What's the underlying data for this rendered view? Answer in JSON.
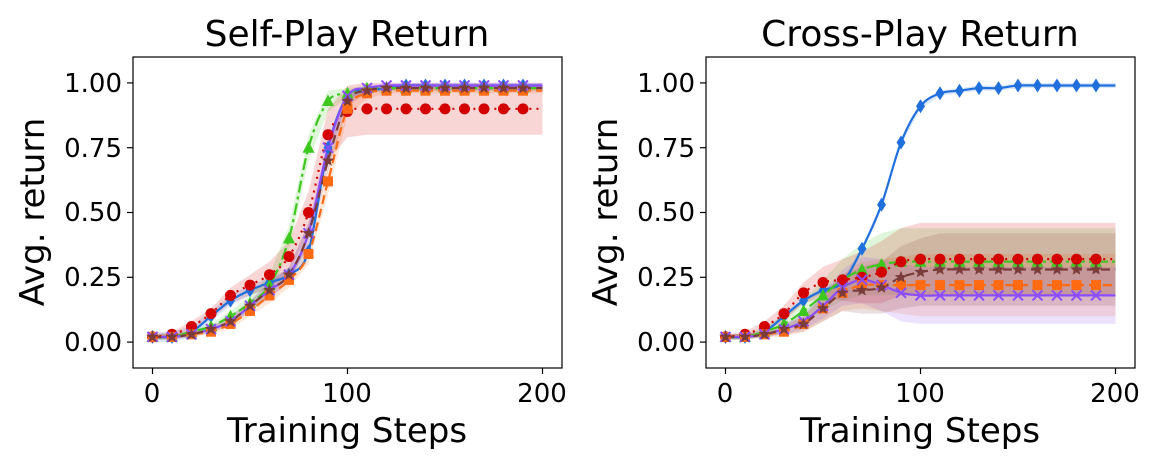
{
  "chart_data": [
    {
      "type": "line",
      "title": "Self-Play Return",
      "xlabel": "Training Steps",
      "ylabel": "Avg. return",
      "xlim": [
        -10,
        210
      ],
      "ylim": [
        -0.1,
        1.1
      ],
      "xticks": [
        0,
        100,
        200
      ],
      "xtick_labels": [
        "0",
        "100",
        "200"
      ],
      "yticks": [
        0.0,
        0.25,
        0.5,
        0.75,
        1.0
      ],
      "ytick_labels": [
        "0.00",
        "0.25",
        "0.50",
        "0.75",
        "1.00"
      ],
      "marker_x": [
        0,
        10,
        20,
        30,
        40,
        50,
        60,
        70,
        80,
        90,
        100,
        110,
        120,
        130,
        140,
        150,
        160,
        170,
        180,
        190
      ],
      "series": [
        {
          "name": "blue-diamond",
          "color": "#1f6fdd",
          "marker": "diamond",
          "linestyle": "solid",
          "values": [
            0.02,
            0.02,
            0.04,
            0.1,
            0.16,
            0.2,
            0.23,
            0.26,
            0.35,
            0.75,
            0.95,
            0.97,
            0.98,
            0.99,
            0.99,
            0.99,
            0.99,
            0.99,
            0.99,
            0.99
          ],
          "band": [
            0.02,
            0.02,
            0.02,
            0.02,
            0.02,
            0.02,
            0.02,
            0.02,
            0.02,
            0.02,
            0.01,
            0.01,
            0.01,
            0.01,
            0.01,
            0.01,
            0.01,
            0.01,
            0.01,
            0.01
          ]
        },
        {
          "name": "green-triangle",
          "color": "#3cc81e",
          "marker": "triangle",
          "linestyle": "dashdot",
          "values": [
            0.02,
            0.02,
            0.04,
            0.06,
            0.1,
            0.15,
            0.22,
            0.4,
            0.75,
            0.93,
            0.96,
            0.98,
            0.98,
            0.98,
            0.98,
            0.98,
            0.98,
            0.98,
            0.98,
            0.98
          ],
          "band": [
            0.01,
            0.01,
            0.01,
            0.01,
            0.02,
            0.03,
            0.04,
            0.05,
            0.05,
            0.04,
            0.02,
            0.01,
            0.01,
            0.01,
            0.01,
            0.01,
            0.01,
            0.01,
            0.01,
            0.01
          ]
        },
        {
          "name": "red-circle",
          "color": "#d40000",
          "marker": "circle",
          "linestyle": "dotted",
          "values": [
            0.02,
            0.03,
            0.06,
            0.11,
            0.18,
            0.22,
            0.26,
            0.33,
            0.5,
            0.8,
            0.89,
            0.9,
            0.9,
            0.9,
            0.9,
            0.9,
            0.9,
            0.9,
            0.9,
            0.9
          ],
          "band": [
            0.01,
            0.01,
            0.02,
            0.02,
            0.03,
            0.04,
            0.05,
            0.06,
            0.08,
            0.1,
            0.1,
            0.1,
            0.1,
            0.1,
            0.1,
            0.1,
            0.1,
            0.1,
            0.1,
            0.1
          ]
        },
        {
          "name": "orange-square",
          "color": "#ff6a13",
          "marker": "square",
          "linestyle": "dashed",
          "values": [
            0.02,
            0.02,
            0.03,
            0.04,
            0.07,
            0.12,
            0.18,
            0.24,
            0.34,
            0.62,
            0.9,
            0.96,
            0.97,
            0.97,
            0.97,
            0.97,
            0.97,
            0.97,
            0.97,
            0.97
          ],
          "band": [
            0.01,
            0.01,
            0.01,
            0.01,
            0.02,
            0.02,
            0.03,
            0.03,
            0.04,
            0.05,
            0.03,
            0.02,
            0.01,
            0.01,
            0.01,
            0.01,
            0.01,
            0.01,
            0.01,
            0.01
          ]
        },
        {
          "name": "purple-x",
          "color": "#8b4dff",
          "marker": "x",
          "linestyle": "solid",
          "values": [
            0.02,
            0.02,
            0.03,
            0.05,
            0.08,
            0.14,
            0.2,
            0.26,
            0.42,
            0.75,
            0.95,
            0.98,
            0.99,
            0.99,
            0.99,
            0.99,
            0.99,
            0.99,
            0.99,
            0.99
          ],
          "band": [
            0.01,
            0.01,
            0.01,
            0.01,
            0.02,
            0.02,
            0.03,
            0.03,
            0.04,
            0.04,
            0.02,
            0.01,
            0.01,
            0.01,
            0.01,
            0.01,
            0.01,
            0.01,
            0.01,
            0.01
          ]
        },
        {
          "name": "brown-star",
          "color": "#7a3b3b",
          "marker": "star",
          "linestyle": "dashed",
          "values": [
            0.02,
            0.02,
            0.03,
            0.05,
            0.08,
            0.14,
            0.2,
            0.26,
            0.42,
            0.7,
            0.93,
            0.97,
            0.98,
            0.98,
            0.98,
            0.98,
            0.98,
            0.98,
            0.98,
            0.98
          ],
          "band": [
            0.01,
            0.01,
            0.01,
            0.01,
            0.02,
            0.02,
            0.03,
            0.03,
            0.04,
            0.04,
            0.02,
            0.01,
            0.01,
            0.01,
            0.01,
            0.01,
            0.01,
            0.01,
            0.01,
            0.01
          ]
        }
      ]
    },
    {
      "type": "line",
      "title": "Cross-Play Return",
      "xlabel": "Training Steps",
      "ylabel": "Avg. return",
      "xlim": [
        -10,
        210
      ],
      "ylim": [
        -0.1,
        1.1
      ],
      "xticks": [
        0,
        100,
        200
      ],
      "xtick_labels": [
        "0",
        "100",
        "200"
      ],
      "yticks": [
        0.0,
        0.25,
        0.5,
        0.75,
        1.0
      ],
      "ytick_labels": [
        "0.00",
        "0.25",
        "0.50",
        "0.75",
        "1.00"
      ],
      "marker_x": [
        0,
        10,
        20,
        30,
        40,
        50,
        60,
        70,
        80,
        90,
        100,
        110,
        120,
        130,
        140,
        150,
        160,
        170,
        180,
        190
      ],
      "series": [
        {
          "name": "blue-diamond",
          "color": "#1f6fdd",
          "marker": "diamond",
          "linestyle": "solid",
          "values": [
            0.02,
            0.02,
            0.04,
            0.1,
            0.16,
            0.2,
            0.23,
            0.36,
            0.53,
            0.77,
            0.91,
            0.96,
            0.97,
            0.98,
            0.98,
            0.99,
            0.99,
            0.99,
            0.99,
            0.99
          ],
          "band": [
            0.01,
            0.01,
            0.01,
            0.01,
            0.01,
            0.01,
            0.01,
            0.01,
            0.01,
            0.01,
            0.01,
            0.01,
            0.01,
            0.01,
            0.01,
            0.01,
            0.01,
            0.01,
            0.01,
            0.01
          ]
        },
        {
          "name": "green-triangle",
          "color": "#3cc81e",
          "marker": "triangle",
          "linestyle": "dashdot",
          "values": [
            0.02,
            0.02,
            0.04,
            0.07,
            0.12,
            0.18,
            0.24,
            0.28,
            0.3,
            0.31,
            0.31,
            0.31,
            0.31,
            0.31,
            0.31,
            0.31,
            0.31,
            0.31,
            0.31,
            0.31
          ],
          "band": [
            0.01,
            0.01,
            0.02,
            0.03,
            0.04,
            0.06,
            0.08,
            0.1,
            0.12,
            0.13,
            0.13,
            0.13,
            0.13,
            0.13,
            0.13,
            0.13,
            0.13,
            0.13,
            0.13,
            0.13
          ]
        },
        {
          "name": "red-circle",
          "color": "#d40000",
          "marker": "circle",
          "linestyle": "dotted",
          "values": [
            0.02,
            0.03,
            0.06,
            0.11,
            0.19,
            0.23,
            0.24,
            0.25,
            0.27,
            0.31,
            0.32,
            0.32,
            0.32,
            0.32,
            0.32,
            0.32,
            0.32,
            0.32,
            0.32,
            0.32
          ],
          "band": [
            0.01,
            0.01,
            0.02,
            0.03,
            0.04,
            0.06,
            0.08,
            0.1,
            0.12,
            0.13,
            0.14,
            0.14,
            0.14,
            0.14,
            0.14,
            0.14,
            0.14,
            0.14,
            0.14,
            0.14
          ]
        },
        {
          "name": "orange-square",
          "color": "#ff6a13",
          "marker": "square",
          "linestyle": "dashed",
          "values": [
            0.02,
            0.02,
            0.03,
            0.04,
            0.07,
            0.13,
            0.19,
            0.22,
            0.22,
            0.22,
            0.22,
            0.22,
            0.22,
            0.22,
            0.22,
            0.22,
            0.22,
            0.22,
            0.22,
            0.22
          ],
          "band": [
            0.01,
            0.01,
            0.01,
            0.02,
            0.03,
            0.05,
            0.07,
            0.09,
            0.1,
            0.11,
            0.12,
            0.12,
            0.12,
            0.12,
            0.12,
            0.12,
            0.12,
            0.12,
            0.12,
            0.12
          ]
        },
        {
          "name": "purple-x",
          "color": "#8b4dff",
          "marker": "x",
          "linestyle": "solid",
          "values": [
            0.02,
            0.02,
            0.03,
            0.05,
            0.08,
            0.14,
            0.21,
            0.24,
            0.22,
            0.19,
            0.18,
            0.18,
            0.18,
            0.18,
            0.18,
            0.18,
            0.18,
            0.18,
            0.18,
            0.18
          ],
          "band": [
            0.01,
            0.01,
            0.01,
            0.02,
            0.03,
            0.05,
            0.07,
            0.09,
            0.1,
            0.11,
            0.11,
            0.11,
            0.11,
            0.11,
            0.11,
            0.11,
            0.11,
            0.11,
            0.11,
            0.11
          ]
        },
        {
          "name": "brown-star",
          "color": "#7a3b3b",
          "marker": "star",
          "linestyle": "dashed",
          "values": [
            0.02,
            0.02,
            0.03,
            0.05,
            0.07,
            0.13,
            0.19,
            0.2,
            0.21,
            0.25,
            0.27,
            0.28,
            0.28,
            0.28,
            0.28,
            0.28,
            0.28,
            0.28,
            0.28,
            0.28
          ],
          "band": [
            0.01,
            0.01,
            0.01,
            0.02,
            0.03,
            0.05,
            0.07,
            0.09,
            0.1,
            0.12,
            0.13,
            0.14,
            0.14,
            0.14,
            0.14,
            0.14,
            0.14,
            0.14,
            0.14,
            0.14
          ]
        }
      ]
    }
  ]
}
